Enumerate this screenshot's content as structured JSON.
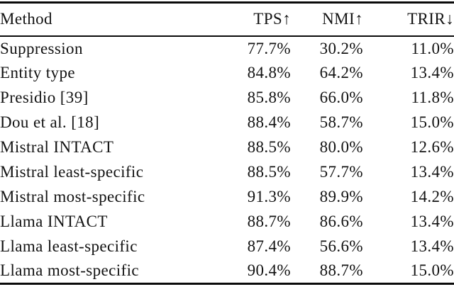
{
  "table": {
    "columns": [
      {
        "key": "method",
        "label": "Method"
      },
      {
        "key": "tps",
        "label": "TPS↑"
      },
      {
        "key": "nmi",
        "label": "NMI↑"
      },
      {
        "key": "trir",
        "label": "TRIR↓"
      }
    ],
    "rows": [
      {
        "method": "Suppression",
        "tps": "77.7%",
        "nmi": "30.2%",
        "trir": "11.0%"
      },
      {
        "method": "Entity type",
        "tps": "84.8%",
        "nmi": "64.2%",
        "trir": "13.4%"
      },
      {
        "method": "Presidio [39]",
        "tps": "85.8%",
        "nmi": "66.0%",
        "trir": "11.8%"
      },
      {
        "method": "Dou et al. [18]",
        "tps": "88.4%",
        "nmi": "58.7%",
        "trir": "15.0%"
      },
      {
        "method": "Mistral INTACT",
        "tps": "88.5%",
        "nmi": "80.0%",
        "trir": "12.6%"
      },
      {
        "method": "Mistral least-specific",
        "tps": "88.5%",
        "nmi": "57.7%",
        "trir": "13.4%"
      },
      {
        "method": "Mistral most-specific",
        "tps": "91.3%",
        "nmi": "89.9%",
        "trir": "14.2%"
      },
      {
        "method": "Llama INTACT",
        "tps": "88.7%",
        "nmi": "86.6%",
        "trir": "13.4%"
      },
      {
        "method": "Llama least-specific",
        "tps": "87.4%",
        "nmi": "56.6%",
        "trir": "13.4%"
      },
      {
        "method": "Llama most-specific",
        "tps": "90.4%",
        "nmi": "88.7%",
        "trir": "15.0%"
      }
    ]
  },
  "chart_data": {
    "type": "table",
    "title": "",
    "columns": [
      "Method",
      "TPS↑",
      "NMI↑",
      "TRIR↓"
    ],
    "rows": [
      [
        "Suppression",
        77.7,
        30.2,
        11.0
      ],
      [
        "Entity type",
        84.8,
        64.2,
        13.4
      ],
      [
        "Presidio [39]",
        85.8,
        66.0,
        11.8
      ],
      [
        "Dou et al. [18]",
        88.4,
        58.7,
        15.0
      ],
      [
        "Mistral INTACT",
        88.5,
        80.0,
        12.6
      ],
      [
        "Mistral least-specific",
        88.5,
        57.7,
        13.4
      ],
      [
        "Mistral most-specific",
        91.3,
        89.9,
        14.2
      ],
      [
        "Llama INTACT",
        88.7,
        86.6,
        13.4
      ],
      [
        "Llama least-specific",
        87.4,
        56.6,
        13.4
      ],
      [
        "Llama most-specific",
        90.4,
        88.7,
        15.0
      ]
    ],
    "units": "%"
  },
  "colors": {
    "text": "#131313",
    "rule": "#0a0a0a",
    "background": "#ffffff"
  }
}
